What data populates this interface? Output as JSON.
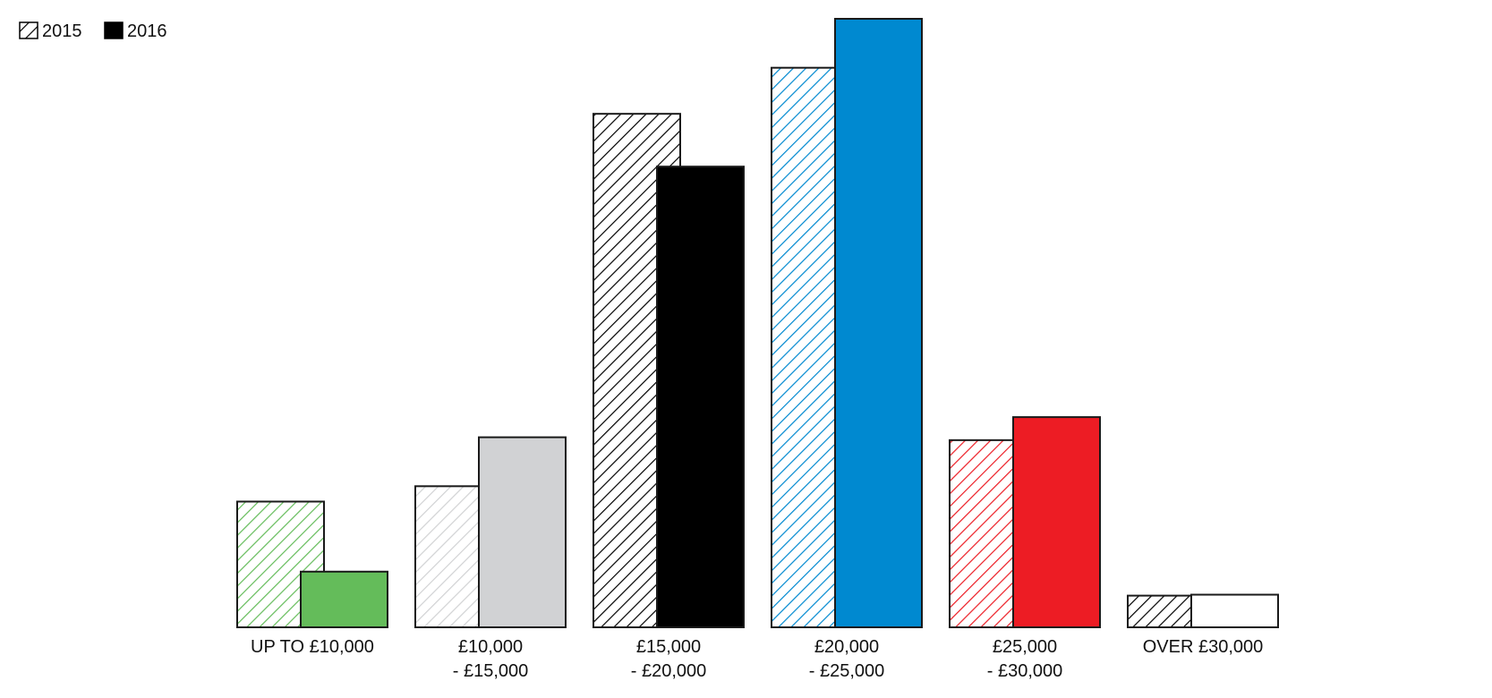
{
  "chart_data": {
    "type": "bar",
    "categories": [
      "UP TO £10,000",
      "£10,000\n- £15,000",
      "£15,000\n- £20,000",
      "£20,000\n- £25,000",
      "£25,000\n- £30,000",
      "OVER £30,000"
    ],
    "colors": [
      "#64bc5a",
      "#d1d2d4",
      "#000000",
      "#0089d0",
      "#ed1c24",
      "#ffffff"
    ],
    "series": [
      {
        "name": "2015",
        "color": "#000000",
        "hatched": true,
        "values": [
          131,
          147,
          535,
          583,
          195,
          33
        ]
      },
      {
        "name": "2016",
        "color": "#000000",
        "hatched": false,
        "values": [
          58,
          198,
          480,
          634,
          219,
          34
        ]
      }
    ],
    "legend": "top-left"
  }
}
